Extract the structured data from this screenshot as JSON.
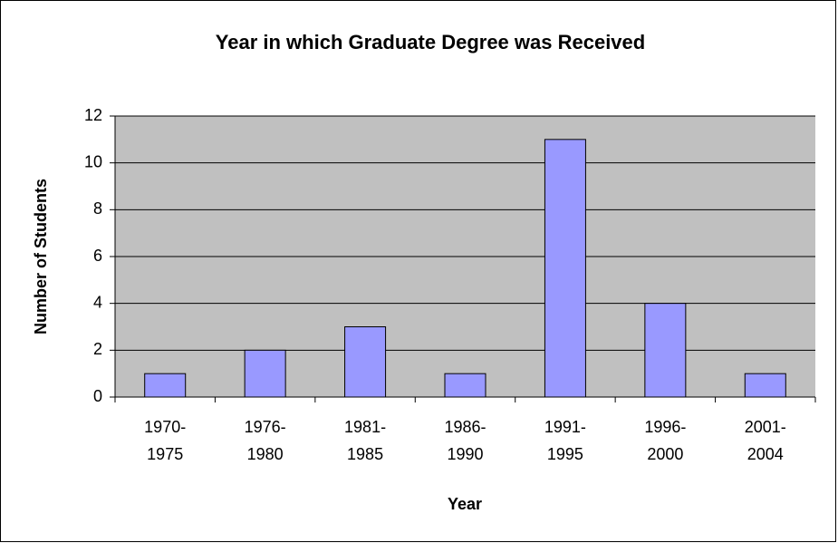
{
  "chart_data": {
    "type": "bar",
    "title": "Year in which Graduate Degree was Received",
    "x_label": "Year",
    "y_label": "Number of Students",
    "categories": [
      "1970-1975",
      "1976-1980",
      "1981-1985",
      "1986-1990",
      "1991-1995",
      "1996-2000",
      "2001-2004"
    ],
    "values": [
      1,
      2,
      3,
      1,
      11,
      4,
      1
    ],
    "color": "#9999ff",
    "ylim": [
      0,
      12
    ],
    "yticks": [
      0,
      2,
      4,
      6,
      8,
      10,
      12
    ],
    "grid": true
  }
}
